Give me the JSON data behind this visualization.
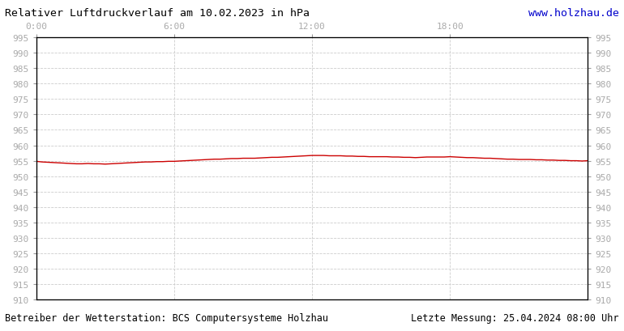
{
  "title": "Relativer Luftdruckverlauf am 10.02.2023 in hPa",
  "website": "www.holzhau.de",
  "footer_left": "Betreiber der Wetterstation: BCS Computersysteme Holzhau",
  "footer_right": "Letzte Messung: 25.04.2024 08:00 Uhr",
  "x_ticks": [
    0,
    6,
    12,
    18,
    24
  ],
  "x_tick_labels": [
    "0:00",
    "6:00",
    "12:00",
    "18:00",
    ""
  ],
  "y_min": 910,
  "y_max": 995,
  "y_step": 5,
  "line_color": "#cc0000",
  "bg_color": "#ffffff",
  "grid_color": "#cccccc",
  "border_color": "#000000",
  "title_color": "#000000",
  "website_color": "#0000cc",
  "footer_color": "#000000",
  "tick_label_color": "#aaaaaa",
  "pressure_data_x": [
    0.0,
    0.25,
    0.5,
    0.75,
    1.0,
    1.25,
    1.5,
    1.75,
    2.0,
    2.25,
    2.5,
    2.75,
    3.0,
    3.25,
    3.5,
    3.75,
    4.0,
    4.25,
    4.5,
    4.75,
    5.0,
    5.25,
    5.5,
    5.75,
    6.0,
    6.25,
    6.5,
    6.75,
    7.0,
    7.25,
    7.5,
    7.75,
    8.0,
    8.25,
    8.5,
    8.75,
    9.0,
    9.25,
    9.5,
    9.75,
    10.0,
    10.25,
    10.5,
    10.75,
    11.0,
    11.25,
    11.5,
    11.75,
    12.0,
    12.25,
    12.5,
    12.75,
    13.0,
    13.25,
    13.5,
    13.75,
    14.0,
    14.25,
    14.5,
    14.75,
    15.0,
    15.25,
    15.5,
    15.75,
    16.0,
    16.25,
    16.5,
    16.75,
    17.0,
    17.25,
    17.5,
    17.75,
    18.0,
    18.25,
    18.5,
    18.75,
    19.0,
    19.25,
    19.5,
    19.75,
    20.0,
    20.25,
    20.5,
    20.75,
    21.0,
    21.25,
    21.5,
    21.75,
    22.0,
    22.25,
    22.5,
    22.75,
    23.0,
    23.25,
    23.5,
    23.75,
    24.0
  ],
  "pressure_data_y": [
    954.8,
    954.6,
    954.5,
    954.4,
    954.3,
    954.2,
    954.1,
    954.0,
    954.0,
    954.1,
    954.0,
    954.0,
    953.9,
    954.0,
    954.1,
    954.2,
    954.3,
    954.4,
    954.5,
    954.6,
    954.6,
    954.7,
    954.7,
    954.8,
    954.8,
    954.9,
    955.0,
    955.1,
    955.2,
    955.3,
    955.4,
    955.5,
    955.5,
    955.6,
    955.7,
    955.7,
    955.8,
    955.8,
    955.8,
    955.9,
    956.0,
    956.1,
    956.1,
    956.2,
    956.3,
    956.4,
    956.5,
    956.6,
    956.7,
    956.7,
    956.7,
    956.6,
    956.6,
    956.6,
    956.5,
    956.5,
    956.4,
    956.4,
    956.3,
    956.3,
    956.3,
    956.3,
    956.2,
    956.2,
    956.1,
    956.1,
    956.0,
    956.1,
    956.2,
    956.2,
    956.2,
    956.2,
    956.3,
    956.2,
    956.1,
    956.0,
    956.0,
    955.9,
    955.8,
    955.8,
    955.7,
    955.6,
    955.5,
    955.5,
    955.4,
    955.4,
    955.4,
    955.3,
    955.3,
    955.2,
    955.2,
    955.1,
    955.1,
    955.0,
    955.0,
    954.9,
    955.0
  ]
}
